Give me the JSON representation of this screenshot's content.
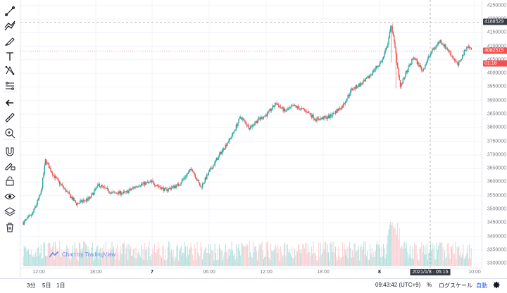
{
  "toolbar": {
    "tools": [
      "crosshair-line-icon",
      "trend-line-icon",
      "brush-icon",
      "text-icon",
      "pattern-icon",
      "measure-levels-icon",
      "back-arrow-icon",
      "ruler-icon",
      "zoom-in-icon",
      "magnet-icon",
      "pencil-lock-icon",
      "lock-icon",
      "eye-icon",
      "layers-icon",
      "trash-icon"
    ]
  },
  "watermark": {
    "text": "Chart by TradingView"
  },
  "price_axis": {
    "ticks": [
      "4200000",
      "4150000",
      "4100000",
      "4050000",
      "4000000",
      "3950000",
      "3900000",
      "3850000",
      "3800000",
      "3750000",
      "3700000",
      "3650000",
      "3600000",
      "3550000",
      "3500000",
      "3450000",
      "3400000",
      "3350000",
      "3300000",
      "4250000"
    ],
    "crosshair_label": "4188529",
    "last_price_label": "4082515",
    "countdown_label": "01:18",
    "colors": {
      "crosshair": "#363a45",
      "last": "#ef5350",
      "countdown": "#ef5350"
    }
  },
  "time_axis": {
    "ticks": [
      "12:00",
      "18:00",
      "7",
      "06:00",
      "12:00",
      "18:00",
      "8",
      "10:00"
    ],
    "crosshair_label": "2021/1/8 · 05:15"
  },
  "bottom_bar": {
    "ranges": [
      "3分",
      "5日",
      "1日"
    ],
    "clock": "09:43:42 (UTC+9)",
    "percent": "%",
    "log_scale": "ログスケール",
    "auto": "自動",
    "settings_icon": "gear-icon"
  },
  "colors": {
    "up": "#26a69a",
    "down": "#ef5350",
    "up_vol": "#b2dfdb",
    "down_vol": "#ffcdd2",
    "accent": "#2962ff"
  },
  "chart_data": {
    "type": "candlestick",
    "y_range": [
      3285000,
      4270000
    ],
    "x_labels": [
      "12:00",
      "18:00",
      "7",
      "06:00",
      "12:00",
      "18:00",
      "8",
      "10:00"
    ],
    "trend": [
      [
        0,
        3450000
      ],
      [
        10,
        3480000
      ],
      [
        20,
        3560000
      ],
      [
        25,
        3680000
      ],
      [
        35,
        3620000
      ],
      [
        50,
        3560000
      ],
      [
        60,
        3520000
      ],
      [
        75,
        3540000
      ],
      [
        85,
        3590000
      ],
      [
        100,
        3560000
      ],
      [
        115,
        3560000
      ],
      [
        130,
        3590000
      ],
      [
        145,
        3600000
      ],
      [
        160,
        3570000
      ],
      [
        175,
        3590000
      ],
      [
        190,
        3650000
      ],
      [
        200,
        3580000
      ],
      [
        210,
        3640000
      ],
      [
        225,
        3720000
      ],
      [
        235,
        3770000
      ],
      [
        245,
        3840000
      ],
      [
        255,
        3800000
      ],
      [
        265,
        3830000
      ],
      [
        275,
        3850000
      ],
      [
        285,
        3890000
      ],
      [
        295,
        3860000
      ],
      [
        305,
        3880000
      ],
      [
        320,
        3860000
      ],
      [
        330,
        3830000
      ],
      [
        345,
        3840000
      ],
      [
        360,
        3880000
      ],
      [
        370,
        3940000
      ],
      [
        385,
        3970000
      ],
      [
        395,
        4010000
      ],
      [
        405,
        4050000
      ],
      [
        410,
        4100000
      ],
      [
        415,
        4180000
      ],
      [
        420,
        4070000
      ],
      [
        425,
        3950000
      ],
      [
        430,
        3990000
      ],
      [
        440,
        4060000
      ],
      [
        450,
        4010000
      ],
      [
        460,
        4080000
      ],
      [
        470,
        4120000
      ],
      [
        480,
        4080000
      ],
      [
        490,
        4030000
      ],
      [
        500,
        4100000
      ],
      [
        505,
        4090000
      ]
    ],
    "volume_scale": [
      0,
      1
    ]
  }
}
